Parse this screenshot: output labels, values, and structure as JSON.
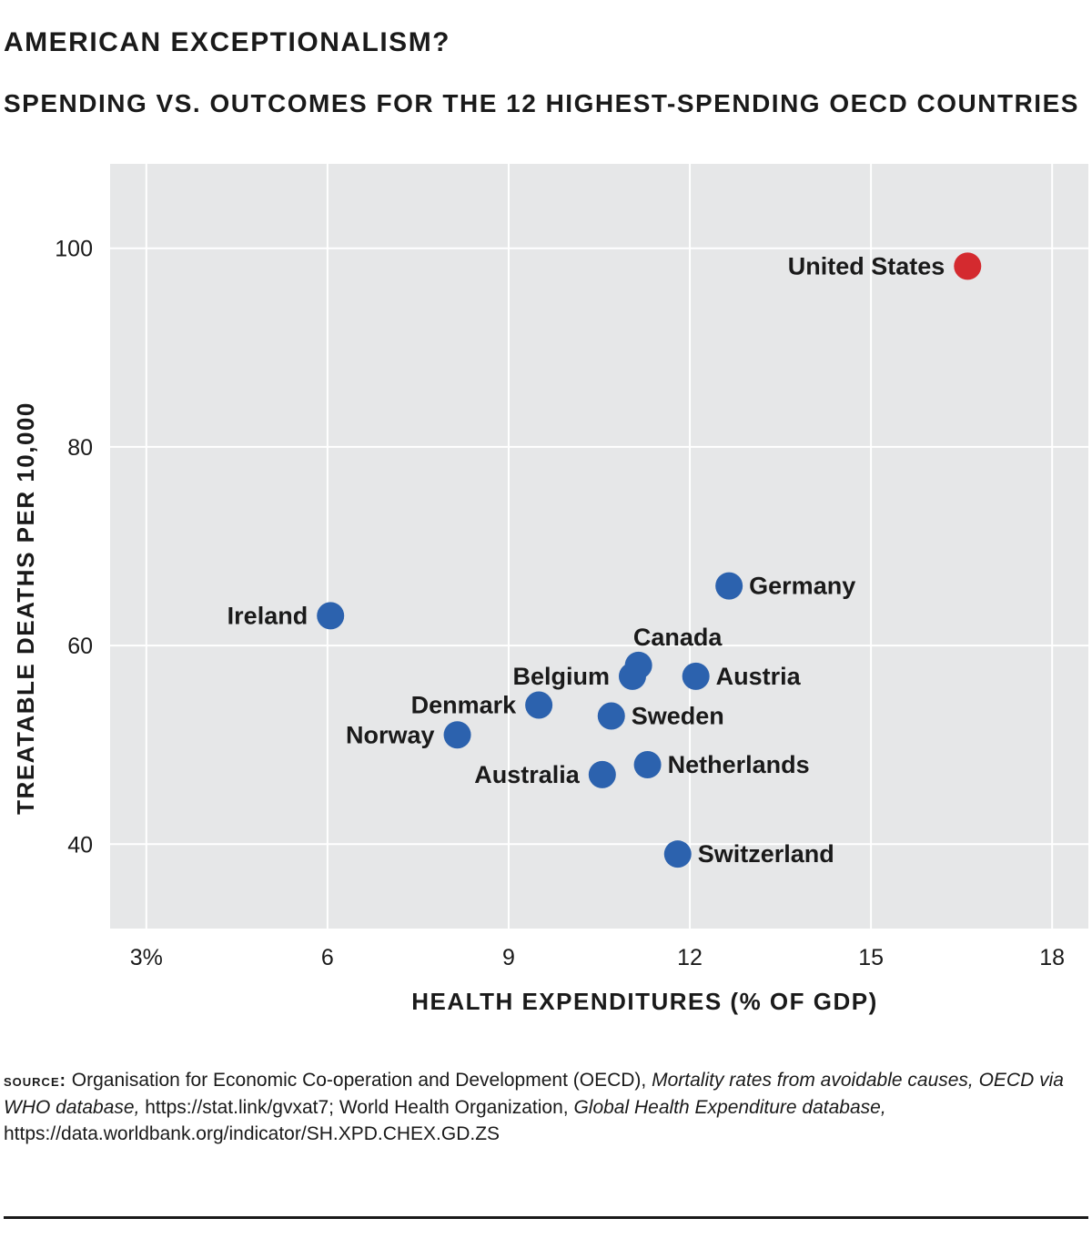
{
  "title": "AMERICAN EXCEPTIONALISM?",
  "subtitle": "SPENDING VS. OUTCOMES FOR THE 12 HIGHEST-SPENDING OECD COUNTRIES",
  "colors": {
    "panel": "#e6e7e8",
    "grid": "#ffffff",
    "point": "#2c62ae",
    "highlight": "#d42a2f",
    "text": "#1a1a1a"
  },
  "chart_data": {
    "type": "scatter",
    "xlabel": "HEALTH EXPENDITURES (% OF GDP)",
    "ylabel": "TREATABLE DEATHS PER 10,000",
    "xlim": [
      2.4,
      18.6
    ],
    "ylim": [
      31.5,
      108.5
    ],
    "xticks": [
      3,
      6,
      9,
      12,
      15,
      18
    ],
    "xtick_labels": [
      "3%",
      "6",
      "9",
      "12",
      "15",
      "18"
    ],
    "yticks": [
      40,
      60,
      80,
      100
    ],
    "ytick_labels": [
      "40",
      "60",
      "80",
      "100"
    ],
    "grid": true,
    "points": [
      {
        "name": "United States",
        "x": 16.6,
        "y": 98.2,
        "highlight": true,
        "label_side": "left"
      },
      {
        "name": "Germany",
        "x": 12.65,
        "y": 66.0,
        "highlight": false,
        "label_side": "right"
      },
      {
        "name": "Ireland",
        "x": 6.05,
        "y": 63.0,
        "highlight": false,
        "label_side": "left"
      },
      {
        "name": "Canada",
        "x": 11.15,
        "y": 58.0,
        "highlight": false,
        "label_side": "above"
      },
      {
        "name": "Belgium",
        "x": 11.05,
        "y": 56.9,
        "highlight": false,
        "label_side": "left"
      },
      {
        "name": "Austria",
        "x": 12.1,
        "y": 56.9,
        "highlight": false,
        "label_side": "right"
      },
      {
        "name": "Denmark",
        "x": 9.5,
        "y": 54.0,
        "highlight": false,
        "label_side": "left"
      },
      {
        "name": "Sweden",
        "x": 10.7,
        "y": 52.9,
        "highlight": false,
        "label_side": "right"
      },
      {
        "name": "Norway",
        "x": 8.15,
        "y": 51.0,
        "highlight": false,
        "label_side": "left"
      },
      {
        "name": "Netherlands",
        "x": 11.3,
        "y": 48.0,
        "highlight": false,
        "label_side": "right"
      },
      {
        "name": "Australia",
        "x": 10.55,
        "y": 47.0,
        "highlight": false,
        "label_side": "left"
      },
      {
        "name": "Switzerland",
        "x": 11.8,
        "y": 39.0,
        "highlight": false,
        "label_side": "right"
      }
    ]
  },
  "source": {
    "label": "source:",
    "text1": "Organisation for Economic Co-operation and Development (OECD),",
    "italic1": "Mortality rates from avoidable causes, OECD via WHO database,",
    "text2": "https://stat.link/gvxat7;  World Health Organization,",
    "italic2": "Global Health Expenditure database,",
    "text3": "https://data.worldbank.org/indicator/SH.XPD.CHEX.GD.ZS"
  }
}
